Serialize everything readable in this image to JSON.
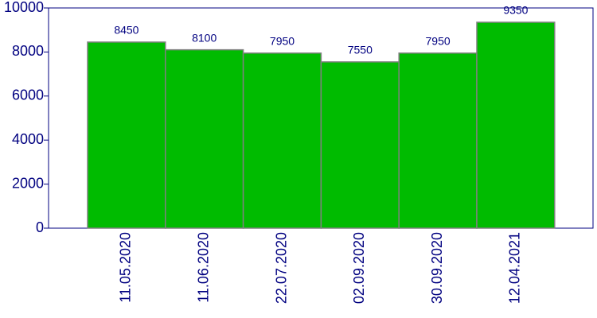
{
  "chart_data": {
    "type": "bar",
    "categories": [
      "11.05.2020",
      "11.06.2020",
      "22.07.2020",
      "02.09.2020",
      "30.09.2020",
      "12.04.2021"
    ],
    "values": [
      8450,
      8100,
      7950,
      7550,
      7950,
      9350
    ],
    "color": "#00bb00",
    "ylim": [
      0,
      10000
    ],
    "yticks": [
      0,
      2000,
      4000,
      6000,
      8000,
      10000
    ]
  }
}
